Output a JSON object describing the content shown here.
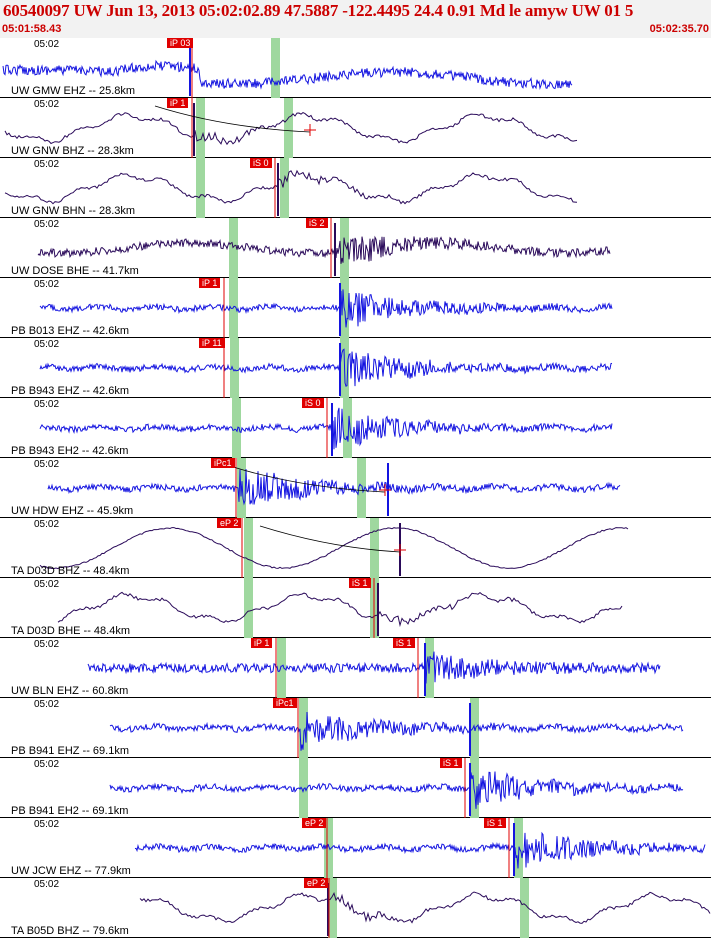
{
  "header": {
    "title": "60540097 UW Jun 13, 2013 05:02:02.89   47.5887 -122.4495 24.4 0.91 Md le amyw UW 01   5",
    "time_start": "05:01:58.43",
    "time_end": "05:02:35.70"
  },
  "colors": {
    "trace_blue": "#1414e0",
    "trace_dark": "#2a0a5a",
    "pick_flag": "#e00000",
    "pick_window": "#9fd89f",
    "header_text": "#cc0000"
  },
  "panels": [
    {
      "time": "05:02",
      "label": "UW GMW EHZ -- 25.8km",
      "trace": "blue",
      "style": "gmw",
      "picks": [
        {
          "label": "iP 03"
        }
      ]
    },
    {
      "time": "05:02",
      "label": "UW GNW BHZ -- 28.3km",
      "trace": "dark",
      "style": "lowfreq",
      "picks": [
        {
          "label": "iP 1"
        }
      ]
    },
    {
      "time": "05:02",
      "label": "UW GNW BHN -- 28.3km",
      "trace": "dark",
      "style": "lowfreq",
      "picks": [
        {
          "label": "iS 0"
        }
      ]
    },
    {
      "time": "05:02",
      "label": "UW DOSE BHE -- 41.7km",
      "trace": "dark",
      "style": "noisy",
      "picks": [
        {
          "label": "iS 2"
        }
      ]
    },
    {
      "time": "05:02",
      "label": "PB B013 EHZ -- 42.6km",
      "trace": "blue",
      "style": "band",
      "picks": [
        {
          "label": "iP 1"
        }
      ]
    },
    {
      "time": "05:02",
      "label": "PB B943 EHZ -- 42.6km",
      "trace": "blue",
      "style": "band",
      "picks": [
        {
          "label": "iP 11"
        }
      ]
    },
    {
      "time": "05:02",
      "label": "PB B943 EH2 -- 42.6km",
      "trace": "blue",
      "style": "band",
      "picks": [
        {
          "label": "iS 0"
        }
      ]
    },
    {
      "time": "05:02",
      "label": "UW HDW EHZ -- 45.9km",
      "trace": "blue",
      "style": "band",
      "picks": [
        {
          "label": "iPc1"
        }
      ]
    },
    {
      "time": "05:02",
      "label": "TA D03D BHZ -- 48.4km",
      "trace": "dark",
      "style": "wave",
      "picks": [
        {
          "label": "eP 2"
        }
      ]
    },
    {
      "time": "05:02",
      "label": "TA D03D BHE -- 48.4km",
      "trace": "dark",
      "style": "lowfreq",
      "picks": [
        {
          "label": "iS 1"
        }
      ]
    },
    {
      "time": "05:02",
      "label": "UW BLN EHZ -- 60.8km",
      "trace": "blue",
      "style": "dense",
      "picks": [
        {
          "label": "iP 1"
        },
        {
          "label": "iS 1"
        }
      ]
    },
    {
      "time": "05:02",
      "label": "PB B941 EHZ -- 69.1km",
      "trace": "blue",
      "style": "band",
      "picks": [
        {
          "label": "iPc1"
        }
      ]
    },
    {
      "time": "05:02",
      "label": "PB B941 EH2 -- 69.1km",
      "trace": "blue",
      "style": "band",
      "picks": [
        {
          "label": "iS 1"
        }
      ]
    },
    {
      "time": "05:02",
      "label": "UW JCW EHZ -- 77.9km",
      "trace": "blue",
      "style": "band",
      "picks": [
        {
          "label": "eP 2"
        },
        {
          "label": "iS 1"
        }
      ]
    },
    {
      "time": "05:02",
      "label": "TA B05D BHZ -- 79.6km",
      "trace": "dark",
      "style": "lowfreq",
      "picks": [
        {
          "label": "eP 2"
        }
      ]
    }
  ]
}
